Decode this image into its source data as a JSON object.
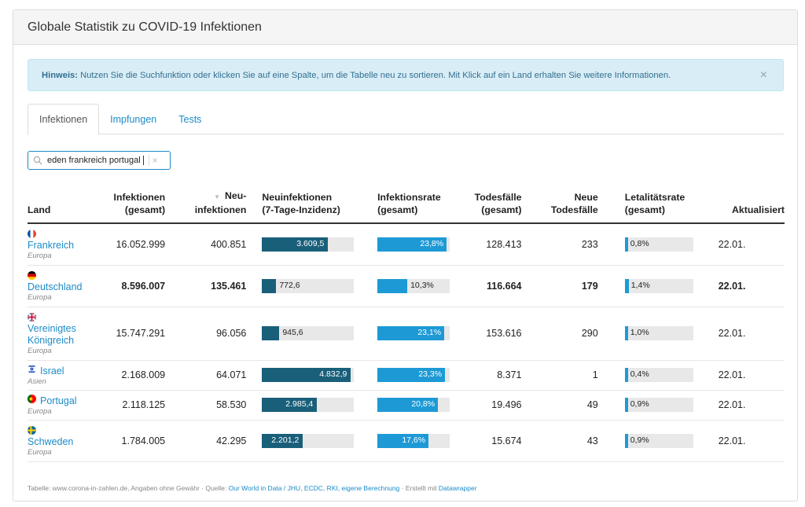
{
  "panel": {
    "title": "Globale Statistik zu COVID-19 Infektionen"
  },
  "alert": {
    "label": "Hinweis:",
    "text": "Nutzen Sie die Suchfunktion oder klicken Sie auf eine Spalte, um die Tabelle neu zu sortieren. Mit Klick auf ein Land erhalten Sie weitere Informationen.",
    "close": "×"
  },
  "tabs": [
    {
      "label": "Infektionen",
      "active": true
    },
    {
      "label": "Impfungen",
      "active": false
    },
    {
      "label": "Tests",
      "active": false
    }
  ],
  "search": {
    "value": "eden frankreich portugal",
    "clear": "×",
    "icon": "search-icon"
  },
  "columns": {
    "land": "Land",
    "infektionen_1": "Infektionen",
    "infektionen_2": "(gesamt)",
    "neu_1": "Neu-",
    "neu_2": "infektionen",
    "inzidenz_1": "Neuinfektionen",
    "inzidenz_2": "(7-Tage-Inzidenz)",
    "rate_1": "Infektionsrate",
    "rate_2": "(gesamt)",
    "tod_1": "Todesfälle",
    "tod_2": "(gesamt)",
    "neutod_1": "Neue",
    "neutod_2": "Todesfälle",
    "letal_1": "Letalitätsrate",
    "letal_2": "(gesamt)",
    "aktualisiert": "Aktualisiert",
    "sort_icon": "▼"
  },
  "rows": [
    {
      "name": "Frankreich",
      "region": "Europa",
      "flag": "fr",
      "infektionen": "16.052.999",
      "neu": "400.851",
      "inzidenz": "3.609,5",
      "inzidenz_val": 3609.5,
      "rate": "23,8%",
      "rate_val": 23.8,
      "tod": "128.413",
      "neutod": "233",
      "letal": "0,8%",
      "letal_val": 0.8,
      "aktualisiert": "22.01.",
      "bold": false
    },
    {
      "name": "Deutschland",
      "region": "Europa",
      "flag": "de",
      "infektionen": "8.596.007",
      "neu": "135.461",
      "inzidenz": "772,6",
      "inzidenz_val": 772.6,
      "rate": "10,3%",
      "rate_val": 10.3,
      "tod": "116.664",
      "neutod": "179",
      "letal": "1,4%",
      "letal_val": 1.4,
      "aktualisiert": "22.01.",
      "bold": true
    },
    {
      "name": "Vereinigtes Königreich",
      "region": "Europa",
      "flag": "gb",
      "infektionen": "15.747.291",
      "neu": "96.056",
      "inzidenz": "945,6",
      "inzidenz_val": 945.6,
      "rate": "23,1%",
      "rate_val": 23.1,
      "tod": "153.616",
      "neutod": "290",
      "letal": "1,0%",
      "letal_val": 1.0,
      "aktualisiert": "22.01.",
      "bold": false
    },
    {
      "name": "Israel",
      "region": "Asien",
      "flag": "il",
      "infektionen": "2.168.009",
      "neu": "64.071",
      "inzidenz": "4.832,9",
      "inzidenz_val": 4832.9,
      "rate": "23,3%",
      "rate_val": 23.3,
      "tod": "8.371",
      "neutod": "1",
      "letal": "0,4%",
      "letal_val": 0.4,
      "aktualisiert": "22.01.",
      "bold": false
    },
    {
      "name": "Portugal",
      "region": "Europa",
      "flag": "pt",
      "infektionen": "2.118.125",
      "neu": "58.530",
      "inzidenz": "2.985,4",
      "inzidenz_val": 2985.4,
      "rate": "20,8%",
      "rate_val": 20.8,
      "tod": "19.496",
      "neutod": "49",
      "letal": "0,9%",
      "letal_val": 0.9,
      "aktualisiert": "22.01.",
      "bold": false
    },
    {
      "name": "Schweden",
      "region": "Europa",
      "flag": "se",
      "infektionen": "1.784.005",
      "neu": "42.295",
      "inzidenz": "2.201,2",
      "inzidenz_val": 2201.2,
      "rate": "17,6%",
      "rate_val": 17.6,
      "tod": "15.674",
      "neutod": "43",
      "letal": "0,9%",
      "letal_val": 0.9,
      "aktualisiert": "22.01.",
      "bold": false
    }
  ],
  "footer": {
    "prefix": "Tabelle: www.corona-in-zahlen.de, Angaben ohne Gewähr · Quelle: ",
    "source": "Our World in Data / JHU, ECDC, RKI, eigene Berechnung",
    "mid": " · Erstellt mit ",
    "tool": "Datawrapper"
  },
  "colors": {
    "accent": "#1d8bc8",
    "bar_dark": "#1a5f7a",
    "bar_light": "#1d9ad6",
    "alert_bg": "#d9edf7"
  }
}
